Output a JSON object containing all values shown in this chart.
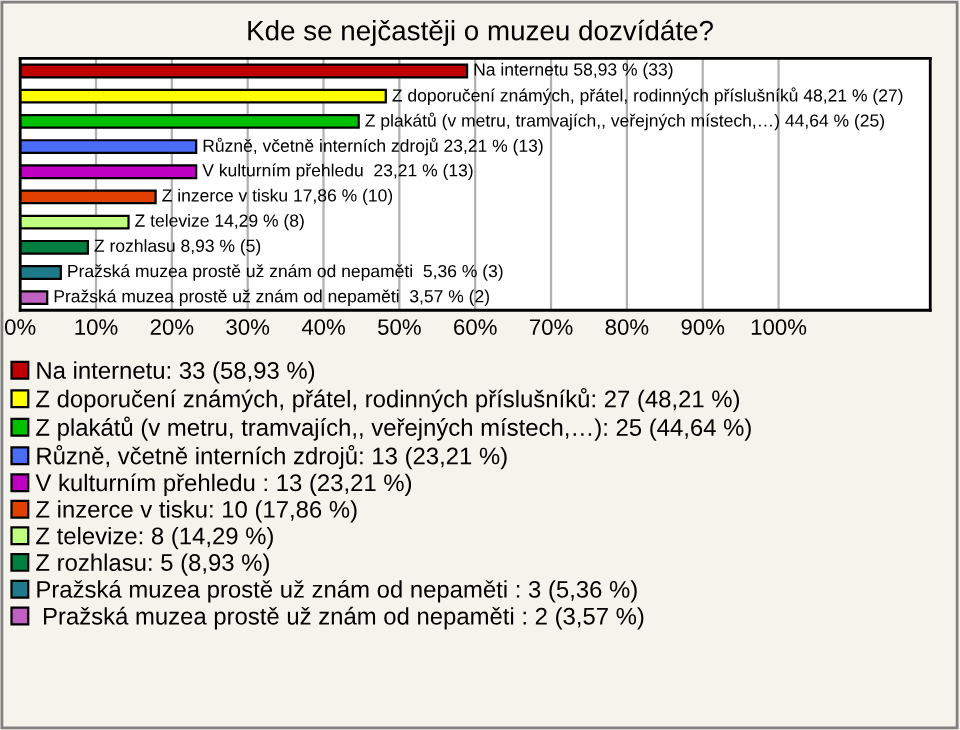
{
  "chart_data": {
    "type": "bar",
    "orientation": "horizontal",
    "title": "Kde se nejčastěji o muzeu dozvídáte?",
    "categories": [
      null,
      null,
      null,
      null,
      null,
      null,
      null,
      null,
      null,
      null
    ],
    "series": [
      {
        "name": "Na internetu: 33 (58,93 %)",
        "color": "#c00000",
        "values": [
          58.93,
          null,
          null,
          null,
          null,
          null,
          null,
          null,
          null,
          null
        ],
        "value_labels": [
          "Na internetu 58,93 % (33)",
          null,
          null,
          null,
          null,
          null,
          null,
          null,
          null,
          null
        ]
      },
      {
        "name": "Z doporučení známých, přátel, rodinných příslušníků: 27 (48,21 %)",
        "color": "#ffff00",
        "values": [
          null,
          48.21,
          null,
          null,
          null,
          null,
          null,
          null,
          null,
          null
        ],
        "value_labels": [
          null,
          "Z doporučení známých, přátel, rodinných příslušníků 48,21 % (27)",
          null,
          null,
          null,
          null,
          null,
          null,
          null,
          null
        ]
      },
      {
        "name": "Z plakátů (v metru, tramvajích,, veřejných místech,…): 25 (44,64 %)",
        "color": "#00c000",
        "values": [
          null,
          null,
          44.64,
          null,
          null,
          null,
          null,
          null,
          null,
          null
        ],
        "value_labels": [
          null,
          null,
          "Z plakátů (v metru, tramvajích,, veřejných místech,…) 44,64 % (25)",
          null,
          null,
          null,
          null,
          null,
          null,
          null
        ]
      },
      {
        "name": "Různě, včetně interních zdrojů: 13 (23,21 %)",
        "color": "#4a6cf7",
        "values": [
          null,
          null,
          null,
          23.21,
          null,
          null,
          null,
          null,
          null,
          null
        ],
        "value_labels": [
          null,
          null,
          null,
          "Různě, včetně interních zdrojů 23,21 % (13)",
          null,
          null,
          null,
          null,
          null,
          null
        ]
      },
      {
        "name": "V kulturním přehledu : 13 (23,21 %)",
        "color": "#c000c0",
        "values": [
          null,
          null,
          null,
          null,
          23.21,
          null,
          null,
          null,
          null,
          null
        ],
        "value_labels": [
          null,
          null,
          null,
          null,
          "V kulturním přehledu  23,21 % (13)",
          null,
          null,
          null,
          null,
          null
        ]
      },
      {
        "name": "Z inzerce v tisku: 10 (17,86 %)",
        "color": "#e04000",
        "values": [
          null,
          null,
          null,
          null,
          null,
          17.86,
          null,
          null,
          null,
          null
        ],
        "value_labels": [
          null,
          null,
          null,
          null,
          null,
          "Z inzerce v tisku 17,86 % (10)",
          null,
          null,
          null,
          null
        ]
      },
      {
        "name": "Z televize: 8 (14,29 %)",
        "color": "#c0ff80",
        "values": [
          null,
          null,
          null,
          null,
          null,
          null,
          14.29,
          null,
          null,
          null
        ],
        "value_labels": [
          null,
          null,
          null,
          null,
          null,
          null,
          "Z televize 14,29 % (8)",
          null,
          null,
          null
        ]
      },
      {
        "name": "Z rozhlasu: 5 (8,93 %)",
        "color": "#008040",
        "values": [
          null,
          null,
          null,
          null,
          null,
          null,
          null,
          8.93,
          null,
          null
        ],
        "value_labels": [
          null,
          null,
          null,
          null,
          null,
          null,
          null,
          "Z rozhlasu 8,93 % (5)",
          null,
          null
        ]
      },
      {
        "name": "Pražská muzea prostě už znám od nepaměti : 3 (5,36 %)",
        "color": "#1f7a8c",
        "values": [
          null,
          null,
          null,
          null,
          null,
          null,
          null,
          null,
          5.36,
          null
        ],
        "value_labels": [
          null,
          null,
          null,
          null,
          null,
          null,
          null,
          null,
          "Pražská muzea prostě už znám od nepaměti  5,36 % (3)",
          null
        ]
      },
      {
        "name": " Pražská muzea prostě už znám od nepaměti : 2 (3,57 %)",
        "color": "#c060c0",
        "values": [
          null,
          null,
          null,
          null,
          null,
          null,
          null,
          null,
          null,
          3.57
        ],
        "value_labels": [
          null,
          null,
          null,
          null,
          null,
          null,
          null,
          null,
          null,
          "Pražská muzea prostě už znám od nepaměti  3,57 % (2)"
        ]
      }
    ],
    "xlim": [
      0,
      120
    ],
    "xticks": [
      {
        "value": 0,
        "label": "0%"
      },
      {
        "value": 10,
        "label": "10%"
      },
      {
        "value": 20,
        "label": "20%"
      },
      {
        "value": 30,
        "label": "30%"
      },
      {
        "value": 40,
        "label": "40%"
      },
      {
        "value": 50,
        "label": "50%"
      },
      {
        "value": 60,
        "label": "60%"
      },
      {
        "value": 70,
        "label": "70%"
      },
      {
        "value": 80,
        "label": "80%"
      },
      {
        "value": 90,
        "label": "90%"
      },
      {
        "value": 100,
        "label": "100%"
      }
    ],
    "grid": "x",
    "legend": "bottom"
  }
}
